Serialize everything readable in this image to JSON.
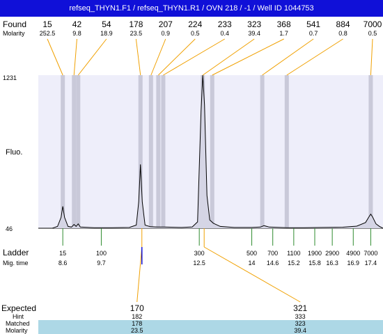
{
  "header": {
    "title": "refseq_THYN1.F1 / refseq_THYN1.R1 / OVN 218 / -1 / Well ID 1044753"
  },
  "labels": {
    "found": "Found",
    "molarity": "Molarity",
    "fluo": "Fluo.",
    "ladder": "Ladder",
    "mig_time": "Mig. time",
    "expected": "Expected",
    "hint": "Hint",
    "matched": "Matched",
    "molarity_bottom": "Molarity"
  },
  "colors": {
    "title_bg": "#1010d8",
    "plot_bg": "#eeeefa",
    "band": "#c9c9d9",
    "trace": "#000000",
    "ladder_tick": "#2e8b2e",
    "leader": "#f0a000",
    "matched_row": "#add8e6"
  },
  "chart_data": {
    "type": "line",
    "title": "",
    "xlabel": "",
    "ylabel": "Fluo.",
    "y_ticks": [
      "1231",
      "46"
    ],
    "ylim": [
      46,
      1231
    ],
    "found": [
      {
        "size": "15",
        "molarity": "252.5",
        "time": 8.6
      },
      {
        "size": "42",
        "molarity": "9.8",
        "time": 8.92
      },
      {
        "size": "54",
        "molarity": "18.9",
        "time": 9.04
      },
      {
        "size": "178",
        "molarity": "23.5",
        "time": 10.82
      },
      {
        "size": "207",
        "molarity": "0.9",
        "time": 11.12
      },
      {
        "size": "224",
        "molarity": "0.5",
        "time": 11.33
      },
      {
        "size": "233",
        "molarity": "0.4",
        "time": 11.47
      },
      {
        "size": "323",
        "molarity": "39.4",
        "time": 12.6
      },
      {
        "size": "368",
        "molarity": "1.7",
        "time": 12.87
      },
      {
        "size": "541",
        "molarity": "0.7",
        "time": 14.3
      },
      {
        "size": "884",
        "molarity": "0.8",
        "time": 15.0
      },
      {
        "size": "7000",
        "molarity": "0.5",
        "time": 17.4
      }
    ],
    "ladder": [
      {
        "size": "15",
        "time": "8.6"
      },
      {
        "size": "100",
        "time": "9.7"
      },
      {
        "size": "300",
        "time": "12.5"
      },
      {
        "size": "500",
        "time": "14"
      },
      {
        "size": "700",
        "time": "14.6"
      },
      {
        "size": "1100",
        "time": "15.2"
      },
      {
        "size": "1900",
        "time": "15.8"
      },
      {
        "size": "2900",
        "time": "16.3"
      },
      {
        "size": "4900",
        "time": "16.9"
      },
      {
        "size": "7000",
        "time": "17.4"
      }
    ],
    "expected": [
      {
        "expected": "170",
        "hint": "182",
        "matched": "178",
        "molarity": "23.5",
        "time": 10.82
      },
      {
        "expected": "321",
        "hint": "333",
        "matched": "323",
        "molarity": "39.4",
        "time": 12.6
      }
    ],
    "trace": [
      [
        8.3,
        46
      ],
      [
        8.45,
        60
      ],
      [
        8.55,
        130
      ],
      [
        8.6,
        215
      ],
      [
        8.65,
        130
      ],
      [
        8.75,
        60
      ],
      [
        8.85,
        55
      ],
      [
        8.92,
        75
      ],
      [
        8.98,
        60
      ],
      [
        9.04,
        80
      ],
      [
        9.1,
        55
      ],
      [
        9.5,
        50
      ],
      [
        10.0,
        50
      ],
      [
        10.5,
        52
      ],
      [
        10.7,
        70
      ],
      [
        10.77,
        250
      ],
      [
        10.82,
        540
      ],
      [
        10.87,
        250
      ],
      [
        10.95,
        70
      ],
      [
        11.1,
        58
      ],
      [
        11.3,
        55
      ],
      [
        11.5,
        55
      ],
      [
        12.0,
        52
      ],
      [
        12.3,
        56
      ],
      [
        12.45,
        95
      ],
      [
        12.55,
        950
      ],
      [
        12.6,
        1231
      ],
      [
        12.65,
        1000
      ],
      [
        12.72,
        300
      ],
      [
        12.8,
        110
      ],
      [
        12.9,
        85
      ],
      [
        13.1,
        60
      ],
      [
        13.5,
        52
      ],
      [
        14.0,
        52
      ],
      [
        14.25,
        55
      ],
      [
        14.35,
        66
      ],
      [
        14.5,
        55
      ],
      [
        15.0,
        50
      ],
      [
        15.5,
        50
      ],
      [
        16.0,
        52
      ],
      [
        16.6,
        54
      ],
      [
        17.0,
        62
      ],
      [
        17.25,
        90
      ],
      [
        17.35,
        135
      ],
      [
        17.4,
        155
      ],
      [
        17.45,
        135
      ],
      [
        17.55,
        80
      ],
      [
        17.65,
        60
      ]
    ]
  }
}
